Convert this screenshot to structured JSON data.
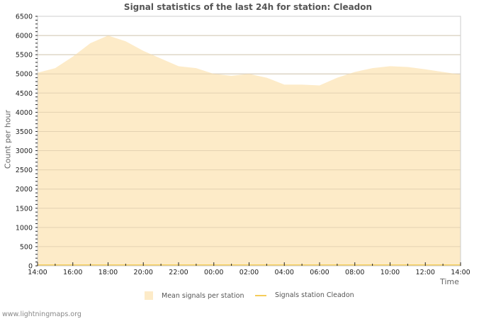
{
  "header": {
    "title": "Signal statistics of the last 24h for station: Cleadon"
  },
  "axes": {
    "ylabel": "Count per hour",
    "xlabel": "Time"
  },
  "legend": {
    "items": [
      {
        "label": "Mean signals per station",
        "type": "area",
        "color": "#fdebc8"
      },
      {
        "label": "Signals station Cleadon",
        "type": "line",
        "color": "#f5cd5a"
      }
    ]
  },
  "footer": {
    "credit": "www.lightningmaps.org"
  },
  "colors": {
    "area_fill": "#fdebc8",
    "line": "#f5cd5a",
    "grid": "#cccccc",
    "grid_inner": "#d8c8a8",
    "frame": "#cccccc"
  },
  "chart_data": {
    "type": "area",
    "title": "Signal statistics of the last 24h for station: Cleadon",
    "xlabel": "Time",
    "ylabel": "Count per hour",
    "ylim": [
      0,
      6500
    ],
    "yticks": [
      0,
      500,
      1000,
      1500,
      2000,
      2500,
      3000,
      3500,
      4000,
      4500,
      5000,
      5500,
      6000,
      6500
    ],
    "xticks": [
      "14:00",
      "16:00",
      "18:00",
      "20:00",
      "22:00",
      "00:00",
      "02:00",
      "04:00",
      "06:00",
      "08:00",
      "10:00",
      "12:00",
      "14:00"
    ],
    "grid": true,
    "legend_position": "bottom",
    "x": [
      "14:00",
      "15:00",
      "16:00",
      "17:00",
      "18:00",
      "19:00",
      "20:00",
      "21:00",
      "22:00",
      "23:00",
      "00:00",
      "01:00",
      "02:00",
      "03:00",
      "04:00",
      "05:00",
      "06:00",
      "07:00",
      "08:00",
      "09:00",
      "10:00",
      "11:00",
      "12:00",
      "13:00",
      "14:00"
    ],
    "series": [
      {
        "name": "Mean signals per station",
        "type": "area",
        "values": [
          5030,
          5150,
          5450,
          5800,
          6000,
          5850,
          5600,
          5400,
          5200,
          5150,
          5000,
          4950,
          5000,
          4900,
          4720,
          4720,
          4700,
          4900,
          5050,
          5150,
          5200,
          5180,
          5120,
          5050,
          4980
        ]
      },
      {
        "name": "Signals station Cleadon",
        "type": "line",
        "values": [
          0,
          0,
          0,
          0,
          0,
          0,
          0,
          0,
          0,
          0,
          0,
          0,
          0,
          0,
          0,
          0,
          0,
          0,
          0,
          0,
          0,
          0,
          0,
          0,
          0
        ]
      }
    ]
  }
}
